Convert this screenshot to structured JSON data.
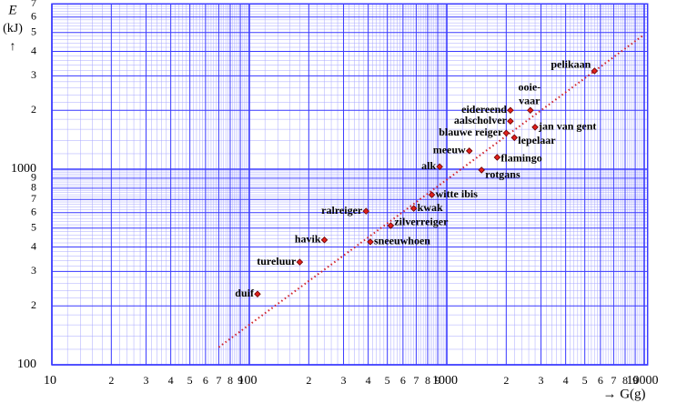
{
  "chart_data": {
    "type": "scatter",
    "log_x": true,
    "log_y": true,
    "grid": true,
    "minor_grid": true,
    "ylabel": [
      "E",
      "(kJ)",
      "↑"
    ],
    "xlabel": "→ G(g)",
    "marker_color": "#e0201c",
    "grid_color": "#3a3aff",
    "minor_grid_color": "#a8a8ff",
    "trend_color": "#d0202a",
    "xlim": [
      10,
      10400
    ],
    "ylim": [
      100,
      7000
    ],
    "xticks": [
      10,
      {
        "value": 20,
        "label": "2"
      },
      {
        "value": 30,
        "label": "3"
      },
      {
        "value": 40,
        "label": "4"
      },
      {
        "value": 50,
        "label": "5"
      },
      {
        "value": 60,
        "label": "6"
      },
      {
        "value": 70,
        "label": "7"
      },
      {
        "value": 80,
        "label": "8"
      },
      {
        "value": 90,
        "label": "9"
      },
      100,
      {
        "value": 200,
        "label": "2"
      },
      {
        "value": 300,
        "label": "3"
      },
      {
        "value": 400,
        "label": "4"
      },
      {
        "value": 500,
        "label": "5"
      },
      {
        "value": 600,
        "label": "6"
      },
      {
        "value": 700,
        "label": "7"
      },
      {
        "value": 800,
        "label": "8"
      },
      {
        "value": 900,
        "label": "9"
      },
      1000,
      {
        "value": 2000,
        "label": "2"
      },
      {
        "value": 3000,
        "label": "3"
      },
      {
        "value": 4000,
        "label": "4"
      },
      {
        "value": 5000,
        "label": "5"
      },
      {
        "value": 6000,
        "label": "6"
      },
      {
        "value": 7000,
        "label": "7"
      },
      {
        "value": 8000,
        "label": "8"
      },
      {
        "value": 9000,
        "label": "9"
      },
      10000
    ],
    "yticks": [
      100,
      {
        "value": 200,
        "label": "2"
      },
      {
        "value": 300,
        "label": "3"
      },
      {
        "value": 400,
        "label": "4"
      },
      {
        "value": 500,
        "label": "5"
      },
      {
        "value": 600,
        "label": "6"
      },
      {
        "value": 700,
        "label": "7"
      },
      {
        "value": 800,
        "label": "8"
      },
      {
        "value": 900,
        "label": "9"
      },
      1000,
      {
        "value": 2000,
        "label": "2"
      },
      {
        "value": 3000,
        "label": "3"
      },
      {
        "value": 4000,
        "label": "4"
      },
      {
        "value": 5000,
        "label": "5"
      },
      {
        "value": 6000,
        "label": "6"
      },
      {
        "value": 7000,
        "label": "7"
      }
    ],
    "trendline": {
      "x": [
        70,
        10000
      ],
      "y": [
        123,
        4880
      ]
    },
    "points": [
      {
        "label": "duif",
        "x": 110,
        "y": 230
      },
      {
        "label": "tureluur",
        "x": 180,
        "y": 335
      },
      {
        "label": "havik",
        "x": 240,
        "y": 435
      },
      {
        "label": "ralreiger",
        "x": 390,
        "y": 610
      },
      {
        "label": "sneeuwhoen",
        "x": 410,
        "y": 425
      },
      {
        "label": "zilverreiger",
        "x": 520,
        "y": 515
      },
      {
        "label": "kwak",
        "x": 680,
        "y": 630
      },
      {
        "label": "witte ibis",
        "x": 840,
        "y": 740
      },
      {
        "label": "alk",
        "x": 920,
        "y": 1030
      },
      {
        "label": "meeuw",
        "x": 1300,
        "y": 1240
      },
      {
        "label": "rotgans",
        "x": 1500,
        "y": 990
      },
      {
        "label": "flamingo",
        "x": 1800,
        "y": 1150
      },
      {
        "label": "blauwe reiger",
        "x": 2000,
        "y": 1530
      },
      {
        "label": "lepelaar",
        "x": 2200,
        "y": 1450
      },
      {
        "label": "aalscholver",
        "x": 2100,
        "y": 1760
      },
      {
        "label": "eidereend",
        "x": 2100,
        "y": 2000
      },
      {
        "label": "ooie-\nvaar",
        "x": 2650,
        "y": 2000
      },
      {
        "label": "jan van gent",
        "x": 2800,
        "y": 1640
      },
      {
        "label": "pelikaan",
        "x": 5600,
        "y": 3180
      }
    ]
  }
}
